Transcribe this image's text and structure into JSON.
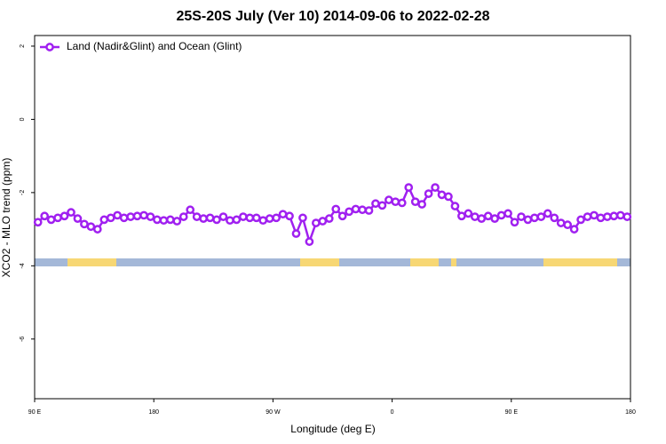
{
  "chart_data": {
    "type": "line",
    "title": "25S-20S July (Ver 10)   2014-09-06 to 2022-02-28",
    "xlabel": "Longitude (deg E)",
    "ylabel": "XCO2 - MLO trend (ppm)",
    "xlim": [
      90,
      540
    ],
    "ylim": [
      -7.63,
      2.29
    ],
    "xticks": [
      {
        "value": 90,
        "label": "90 E"
      },
      180,
      {
        "value": 270,
        "label": "90 W"
      },
      {
        "value": 360,
        "label": "0"
      },
      {
        "value": 450,
        "label": "90 E"
      },
      {
        "value": 540,
        "label": "180"
      }
    ],
    "yticks": [
      2,
      0,
      -2,
      -4,
      -6
    ],
    "legend": "top-left",
    "x": [
      92.5,
      97.5,
      102.5,
      107.5,
      112.5,
      117.5,
      122.5,
      127.5,
      132.5,
      137.5,
      142.5,
      147.5,
      152.5,
      157.5,
      162.5,
      167.5,
      172.5,
      177.5,
      182.5,
      187.5,
      192.5,
      197.5,
      202.5,
      207.5,
      212.5,
      217.5,
      222.5,
      227.5,
      232.5,
      237.5,
      242.5,
      247.5,
      252.5,
      257.5,
      262.5,
      267.5,
      272.5,
      277.5,
      282.5,
      287.5,
      292.5,
      297.5,
      302.5,
      307.5,
      312.5,
      317.5,
      322.5,
      327.5,
      332.5,
      337.5,
      342.5,
      347.5,
      352.5,
      357.5,
      362.5,
      367.5,
      372.5,
      377.5,
      382.5,
      387.5,
      392.5,
      397.5,
      402.5,
      407.5,
      412.5,
      417.5,
      422.5,
      427.5,
      432.5,
      437.5,
      442.5,
      447.5,
      452.5,
      457.5,
      462.5,
      467.5,
      472.5,
      477.5,
      482.5,
      487.5,
      492.5,
      497.5,
      502.5,
      507.5,
      512.5,
      517.5,
      522.5,
      527.5,
      532.5,
      537.5
    ],
    "series": [
      {
        "name": "Land (Nadir&Glint) and Ocean (Glint)",
        "color": "#a020f0",
        "values": [
          -2.81,
          -2.64,
          -2.74,
          -2.69,
          -2.64,
          -2.54,
          -2.71,
          -2.86,
          -2.93,
          -3.0,
          -2.74,
          -2.69,
          -2.62,
          -2.69,
          -2.66,
          -2.64,
          -2.62,
          -2.66,
          -2.74,
          -2.76,
          -2.74,
          -2.78,
          -2.66,
          -2.47,
          -2.66,
          -2.71,
          -2.69,
          -2.74,
          -2.66,
          -2.76,
          -2.74,
          -2.66,
          -2.69,
          -2.69,
          -2.76,
          -2.71,
          -2.69,
          -2.59,
          -2.64,
          -3.12,
          -2.69,
          -3.34,
          -2.83,
          -2.78,
          -2.71,
          -2.45,
          -2.64,
          -2.52,
          -2.45,
          -2.47,
          -2.49,
          -2.3,
          -2.35,
          -2.2,
          -2.25,
          -2.28,
          -1.86,
          -2.25,
          -2.32,
          -2.03,
          -1.86,
          -2.06,
          -2.11,
          -2.37,
          -2.64,
          -2.57,
          -2.66,
          -2.71,
          -2.64,
          -2.71,
          -2.62,
          -2.57,
          -2.81,
          -2.66,
          -2.74,
          -2.69,
          -2.66,
          -2.57,
          -2.69,
          -2.83,
          -2.88,
          -3.0,
          -2.74,
          -2.66,
          -2.62,
          -2.69,
          -2.66,
          -2.64,
          -2.62,
          -2.66
        ]
      }
    ]
  }
}
